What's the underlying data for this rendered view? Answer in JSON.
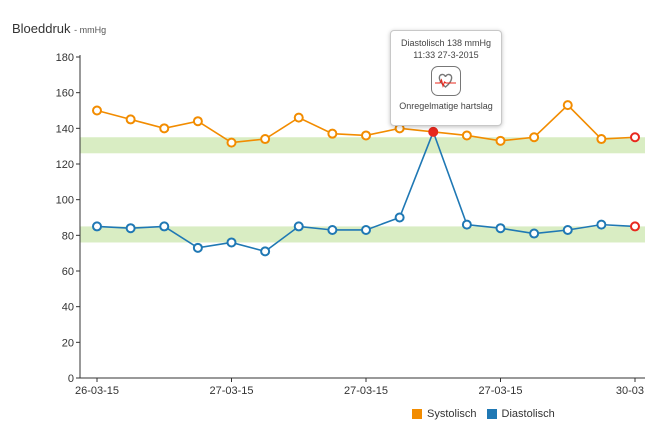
{
  "title": "Bloeddruk",
  "unit": "- mmHg",
  "legend": [
    {
      "name": "Systolisch",
      "color": "#f28c00"
    },
    {
      "name": "Diastolisch",
      "color": "#1f78b4"
    }
  ],
  "tooltip": {
    "line1": "Diastolisch 138 mmHg",
    "line2": "11:33 27-3-2015",
    "icon": "irregular-heartbeat-icon",
    "label": "Onregelmatige hartslag"
  },
  "chart_data": {
    "type": "line",
    "ylim": [
      0,
      180
    ],
    "yticks": [
      0,
      20,
      40,
      60,
      80,
      100,
      120,
      140,
      160,
      180
    ],
    "xticks": [
      {
        "label": "26-03-15",
        "index": 0
      },
      {
        "label": "27-03-15",
        "index": 4
      },
      {
        "label": "27-03-15",
        "index": 8
      },
      {
        "label": "27-03-15",
        "index": 12
      },
      {
        "label": "30-03",
        "index": 16
      }
    ],
    "target_bands": [
      {
        "series": "Systolisch",
        "range": [
          126,
          135
        ],
        "color": "#d9edc3"
      },
      {
        "series": "Diastolisch",
        "range": [
          76,
          85
        ],
        "color": "#d9edc3"
      }
    ],
    "series": [
      {
        "name": "Systolisch",
        "color": "#f28c00",
        "values": [
          150,
          145,
          140,
          144,
          132,
          134,
          146,
          137,
          136,
          140,
          null,
          136,
          133,
          135,
          153,
          134,
          135
        ],
        "highlight": [
          16
        ]
      },
      {
        "name": "Diastolisch",
        "color": "#1f78b4",
        "values": [
          85,
          84,
          85,
          73,
          76,
          71,
          85,
          83,
          83,
          90,
          138,
          86,
          84,
          81,
          83,
          86,
          85
        ],
        "highlight": [
          10,
          16
        ]
      }
    ],
    "highlight_color": "#e8281e"
  }
}
